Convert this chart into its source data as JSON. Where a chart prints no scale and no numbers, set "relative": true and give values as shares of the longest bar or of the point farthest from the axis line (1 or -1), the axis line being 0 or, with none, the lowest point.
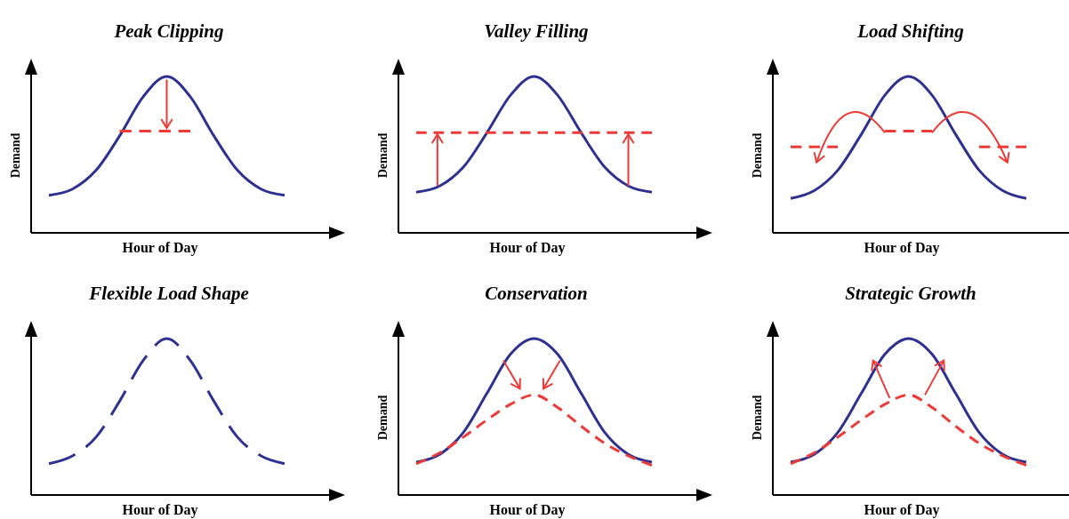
{
  "chart_data": [
    {
      "type": "line",
      "title": "Peak Clipping",
      "xlabel": "Hour of Day",
      "ylabel": "Demand",
      "relative": true,
      "categories": [
        null,
        null,
        null,
        null,
        null,
        null,
        null,
        null,
        null,
        null,
        null,
        null
      ],
      "series": [
        {
          "color": "#2e3192",
          "line_style": "solid",
          "values": [
            0.24,
            0.28,
            0.4,
            0.62,
            0.87,
            1,
            0.87,
            0.62,
            0.4,
            0.28,
            0.24,
            null
          ]
        },
        {
          "color": "#ed3a36",
          "line_style": "dashed",
          "values": [
            null,
            null,
            null,
            0.65,
            0.65,
            0.65,
            0.65,
            null,
            null,
            null,
            null,
            null
          ]
        }
      ]
    },
    {
      "type": "line",
      "title": "Valley Filling",
      "xlabel": "Hour of Day",
      "ylabel": "Demand",
      "relative": true,
      "categories": [
        null,
        null,
        null,
        null,
        null,
        null,
        null,
        null,
        null,
        null,
        null,
        null
      ],
      "series": [
        {
          "color": "#2e3192",
          "line_style": "solid",
          "values": [
            0.26,
            0.3,
            0.42,
            0.64,
            0.88,
            1,
            0.88,
            0.64,
            0.42,
            0.3,
            0.26,
            null
          ]
        },
        {
          "color": "#ed3a36",
          "line_style": "dashed",
          "values": [
            0.64,
            0.64,
            0.64,
            0.64,
            0.64,
            0.64,
            0.64,
            0.64,
            0.64,
            0.64,
            0.64,
            null
          ]
        }
      ]
    },
    {
      "type": "line",
      "title": "Load Shifting",
      "xlabel": "Hour of Day",
      "ylabel": "Demand",
      "relative": true,
      "categories": [
        null,
        null,
        null,
        null,
        null,
        null,
        null,
        null,
        null,
        null,
        null,
        null
      ],
      "series": [
        {
          "color": "#2e3192",
          "line_style": "solid",
          "values": [
            0.22,
            0.27,
            0.4,
            0.63,
            0.88,
            1,
            0.88,
            0.63,
            0.4,
            0.27,
            0.22,
            null
          ]
        },
        {
          "color": "#ed3a36",
          "line_style": "dashed",
          "values": [
            0.55,
            0.55,
            0.55,
            null,
            0.65,
            0.65,
            0.65,
            null,
            0.55,
            0.55,
            0.55,
            null
          ]
        }
      ]
    },
    {
      "type": "line",
      "title": "Flexible Load Shape",
      "xlabel": "Hour of Day",
      "relative": true,
      "categories": [
        null,
        null,
        null,
        null,
        null,
        null,
        null,
        null,
        null,
        null,
        null,
        null
      ],
      "series": [
        {
          "color": "#2e3192",
          "line_style": "dashed",
          "values": [
            0.2,
            0.25,
            0.37,
            0.6,
            0.86,
            1,
            0.86,
            0.6,
            0.37,
            0.25,
            0.2,
            null
          ]
        }
      ]
    },
    {
      "type": "line",
      "title": "Conservation",
      "xlabel": "Hour of Day",
      "ylabel": "Demand",
      "relative": true,
      "categories": [
        null,
        null,
        null,
        null,
        null,
        null,
        null,
        null,
        null,
        null,
        null,
        null
      ],
      "series": [
        {
          "color": "#2e3192",
          "line_style": "solid",
          "values": [
            0.21,
            0.26,
            0.4,
            0.65,
            0.9,
            1,
            0.9,
            0.65,
            0.4,
            0.26,
            0.21,
            null
          ]
        },
        {
          "color": "#ed3a36",
          "line_style": "dashed",
          "values": [
            0.2,
            0.27,
            0.37,
            0.48,
            0.58,
            0.64,
            0.56,
            0.44,
            0.33,
            0.25,
            0.19,
            null
          ]
        }
      ]
    },
    {
      "type": "line",
      "title": "Strategic Growth",
      "xlabel": "Hour of Day",
      "ylabel": "Demand",
      "relative": true,
      "categories": [
        null,
        null,
        null,
        null,
        null,
        null,
        null,
        null,
        null,
        null,
        null,
        null
      ],
      "series": [
        {
          "color": "#2e3192",
          "line_style": "solid",
          "values": [
            0.21,
            0.26,
            0.4,
            0.65,
            0.9,
            1,
            0.9,
            0.65,
            0.4,
            0.26,
            0.21,
            null
          ]
        },
        {
          "color": "#ed3a36",
          "line_style": "dashed",
          "values": [
            0.2,
            0.27,
            0.37,
            0.48,
            0.58,
            0.64,
            0.56,
            0.44,
            0.33,
            0.25,
            0.19,
            null
          ]
        }
      ]
    }
  ]
}
